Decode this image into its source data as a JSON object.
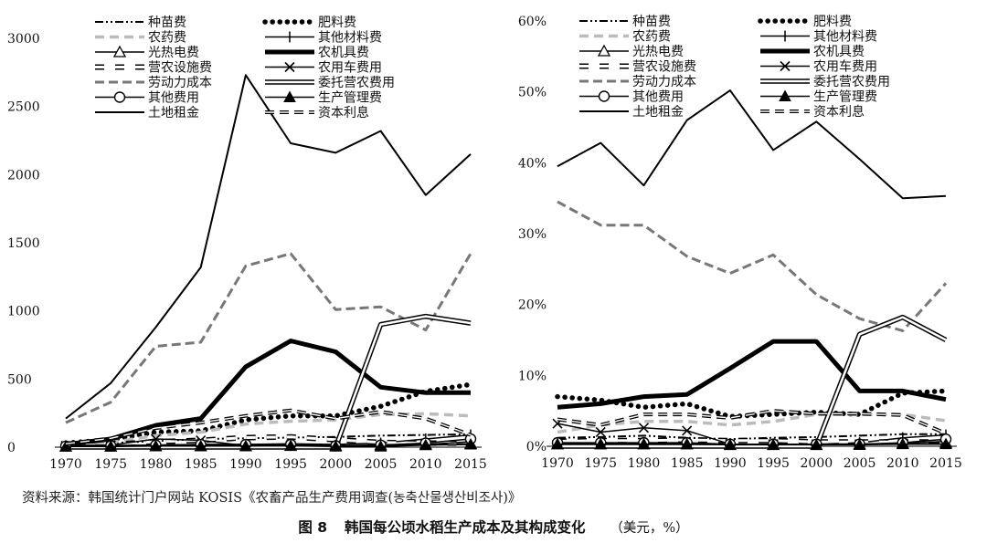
{
  "years": [
    "1970",
    "1975",
    "1980",
    "1985",
    "1990",
    "1995",
    "2000",
    "2005",
    "2010",
    "2015"
  ],
  "legend_labels": {
    "seed": "种苗费",
    "fert": "肥料费",
    "pest": "农药费",
    "othermat": "其他材料费",
    "power": "光热电费",
    "machine": "农机具费",
    "facility": "营农设施费",
    "vehicle": "农用车费用",
    "labor": "劳动力成本",
    "contract": "委托营农费用",
    "otherexp": "其他费用",
    "mgmt": "生产管理费",
    "land": "土地租金",
    "interest": "资本利息"
  },
  "source": "资料来源：韩国统计门户网站 KOSIS《农畜产品生产费用调查(농축산물생산비조사)》",
  "caption": {
    "number": "图 8",
    "title": "韩国每公顷水稻生产成本及其构成变化",
    "unit": "（美元，%）"
  },
  "chart_data": [
    {
      "type": "line",
      "unit": "美元",
      "x": [
        "1970",
        "1975",
        "1980",
        "1985",
        "1990",
        "1995",
        "2000",
        "2005",
        "2010",
        "2015"
      ],
      "ylim": [
        0,
        3000
      ],
      "yticks": [
        "0",
        "500",
        "1000",
        "1500",
        "2000",
        "2500",
        "3000"
      ],
      "grid": false,
      "legend_position": "top-left",
      "series": [
        {
          "key": "seed",
          "name": "种苗费",
          "values": [
            12,
            30,
            45,
            60,
            65,
            70,
            75,
            85,
            90,
            95
          ]
        },
        {
          "key": "fert",
          "name": "肥料费",
          "values": [
            30,
            55,
            110,
            120,
            200,
            230,
            230,
            300,
            410,
            460
          ]
        },
        {
          "key": "pest",
          "name": "农药费",
          "values": [
            15,
            35,
            85,
            110,
            170,
            190,
            200,
            240,
            245,
            230
          ]
        },
        {
          "key": "othermat",
          "name": "其他材料费",
          "values": [
            8,
            10,
            15,
            20,
            20,
            25,
            20,
            30,
            60,
            90
          ]
        },
        {
          "key": "power",
          "name": "光热电费",
          "values": [
            5,
            5,
            8,
            8,
            8,
            10,
            10,
            15,
            20,
            25
          ]
        },
        {
          "key": "machine",
          "name": "农机具费",
          "values": [
            20,
            60,
            160,
            210,
            590,
            780,
            700,
            440,
            400,
            400
          ]
        },
        {
          "key": "facility",
          "name": "营农设施费",
          "values": [
            10,
            20,
            40,
            50,
            70,
            75,
            55,
            35,
            30,
            30
          ]
        },
        {
          "key": "vehicle",
          "name": "农用车费用",
          "values": [
            10,
            15,
            60,
            50,
            10,
            15,
            10,
            10,
            20,
            40
          ]
        },
        {
          "key": "labor",
          "name": "劳动力成本",
          "values": [
            180,
            330,
            740,
            770,
            1330,
            1420,
            1010,
            1030,
            860,
            1420
          ]
        },
        {
          "key": "contract",
          "name": "委托营农费用",
          "values": [
            0,
            0,
            0,
            0,
            0,
            0,
            0,
            900,
            960,
            910
          ]
        },
        {
          "key": "otherexp",
          "name": "其他费用",
          "values": [
            8,
            10,
            15,
            20,
            20,
            20,
            10,
            15,
            30,
            60
          ]
        },
        {
          "key": "mgmt",
          "name": "生产管理费",
          "values": [
            5,
            5,
            8,
            8,
            8,
            10,
            5,
            5,
            15,
            20
          ]
        },
        {
          "key": "land",
          "name": "土地租金",
          "values": [
            210,
            470,
            880,
            1320,
            2730,
            2230,
            2160,
            2320,
            1850,
            2150
          ]
        },
        {
          "key": "interest",
          "name": "资本利息",
          "values": [
            25,
            65,
            140,
            180,
            230,
            270,
            210,
            260,
            210,
            90
          ]
        }
      ]
    },
    {
      "type": "line",
      "unit": "%",
      "x": [
        "1970",
        "1975",
        "1980",
        "1985",
        "1990",
        "1995",
        "2000",
        "2005",
        "2010",
        "2015"
      ],
      "ylim": [
        0,
        60
      ],
      "yticks": [
        "0%",
        "10%",
        "20%",
        "30%",
        "40%",
        "50%",
        "60%"
      ],
      "grid": false,
      "legend_position": "top-left",
      "series": [
        {
          "key": "seed",
          "name": "种苗费",
          "values": [
            1.2,
            1.3,
            1.5,
            1.2,
            1.0,
            1.2,
            1.3,
            1.5,
            1.7,
            1.7
          ]
        },
        {
          "key": "fert",
          "name": "肥料费",
          "values": [
            7.0,
            6.5,
            5.5,
            6.0,
            4.2,
            4.5,
            4.8,
            4.5,
            7.5,
            7.8
          ]
        },
        {
          "key": "pest",
          "name": "农药费",
          "values": [
            2.0,
            3.0,
            3.5,
            3.5,
            3.0,
            3.5,
            4.5,
            4.5,
            4.5,
            3.6
          ]
        },
        {
          "key": "othermat",
          "name": "其他材料费",
          "values": [
            0.5,
            0.4,
            0.5,
            0.4,
            0.3,
            0.3,
            0.3,
            0.5,
            1.2,
            1.6
          ]
        },
        {
          "key": "power",
          "name": "光热电费",
          "values": [
            0.3,
            0.3,
            0.3,
            0.3,
            0.2,
            0.2,
            0.2,
            0.3,
            0.4,
            0.5
          ]
        },
        {
          "key": "machine",
          "name": "农机具费",
          "values": [
            5.5,
            6.0,
            7.0,
            7.3,
            11.0,
            14.8,
            14.8,
            7.8,
            7.8,
            6.6
          ]
        },
        {
          "key": "facility",
          "name": "营农设施费",
          "values": [
            0.7,
            0.8,
            0.8,
            0.9,
            0.8,
            0.8,
            0.6,
            0.6,
            0.6,
            0.6
          ]
        },
        {
          "key": "vehicle",
          "name": "农用车费用",
          "values": [
            3.2,
            2.0,
            2.6,
            2.2,
            0.3,
            0.3,
            0.3,
            0.3,
            0.4,
            0.7
          ]
        },
        {
          "key": "labor",
          "name": "劳动力成本",
          "values": [
            34.5,
            31.2,
            31.2,
            26.8,
            24.4,
            27.0,
            21.4,
            18.0,
            16.3,
            23.0
          ]
        },
        {
          "key": "contract",
          "name": "委托营农费用",
          "values": [
            0,
            0,
            0,
            0,
            0,
            0,
            0,
            15.8,
            18.2,
            15.0
          ]
        },
        {
          "key": "otherexp",
          "name": "其他费用",
          "values": [
            0.5,
            0.5,
            0.5,
            0.5,
            0.3,
            0.3,
            0.3,
            0.3,
            0.5,
            1.0
          ]
        },
        {
          "key": "mgmt",
          "name": "生产管理费",
          "values": [
            0.3,
            0.3,
            0.3,
            0.3,
            0.2,
            0.2,
            0.2,
            0.2,
            0.3,
            0.3
          ]
        },
        {
          "key": "land",
          "name": "土地租金",
          "values": [
            39.5,
            42.8,
            36.8,
            46.0,
            50.2,
            41.8,
            45.8,
            40.5,
            35.0,
            35.3
          ]
        },
        {
          "key": "interest",
          "name": "资本利息",
          "values": [
            3.8,
            3.0,
            4.5,
            4.5,
            4.0,
            5.0,
            4.6,
            4.6,
            4.4,
            1.8
          ]
        }
      ]
    }
  ]
}
